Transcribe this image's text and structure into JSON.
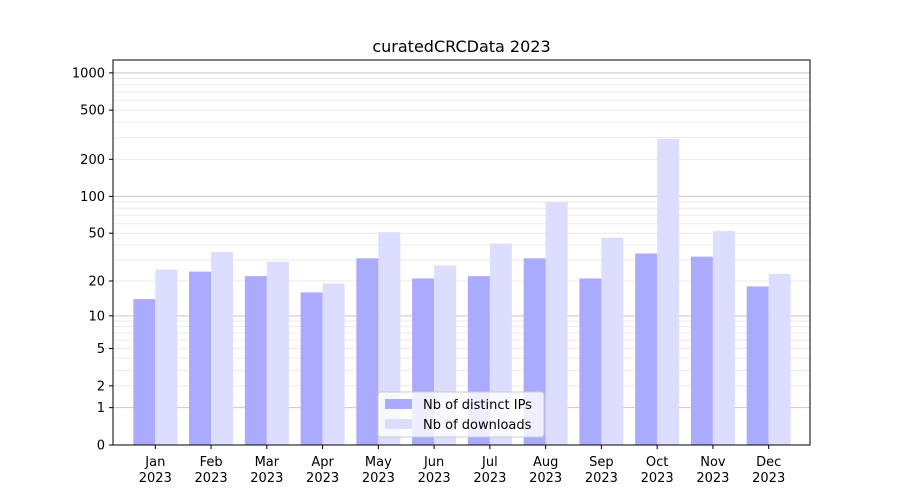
{
  "chart_data": {
    "type": "bar",
    "title": "curatedCRCData 2023",
    "xlabel": "",
    "ylabel": "",
    "yscale": "log(y+1)",
    "ylim": [
      0,
      1270
    ],
    "yticks": [
      0,
      1,
      2,
      5,
      10,
      20,
      50,
      100,
      200,
      500,
      1000
    ],
    "grid": true,
    "legend_position": "lower center",
    "categories": [
      "Jan\n2023",
      "Feb\n2023",
      "Mar\n2023",
      "Apr\n2023",
      "May\n2023",
      "Jun\n2023",
      "Jul\n2023",
      "Aug\n2023",
      "Sep\n2023",
      "Oct\n2023",
      "Nov\n2023",
      "Dec\n2023"
    ],
    "series": [
      {
        "name": "Nb of distinct IPs",
        "color": "#aaaaff",
        "values": [
          14,
          24,
          22,
          16,
          31,
          21,
          22,
          31,
          21,
          34,
          32,
          18
        ]
      },
      {
        "name": "Nb of downloads",
        "color": "#ddddff",
        "values": [
          25,
          35,
          29,
          19,
          51,
          27,
          41,
          90,
          46,
          292,
          52,
          23
        ]
      }
    ]
  }
}
